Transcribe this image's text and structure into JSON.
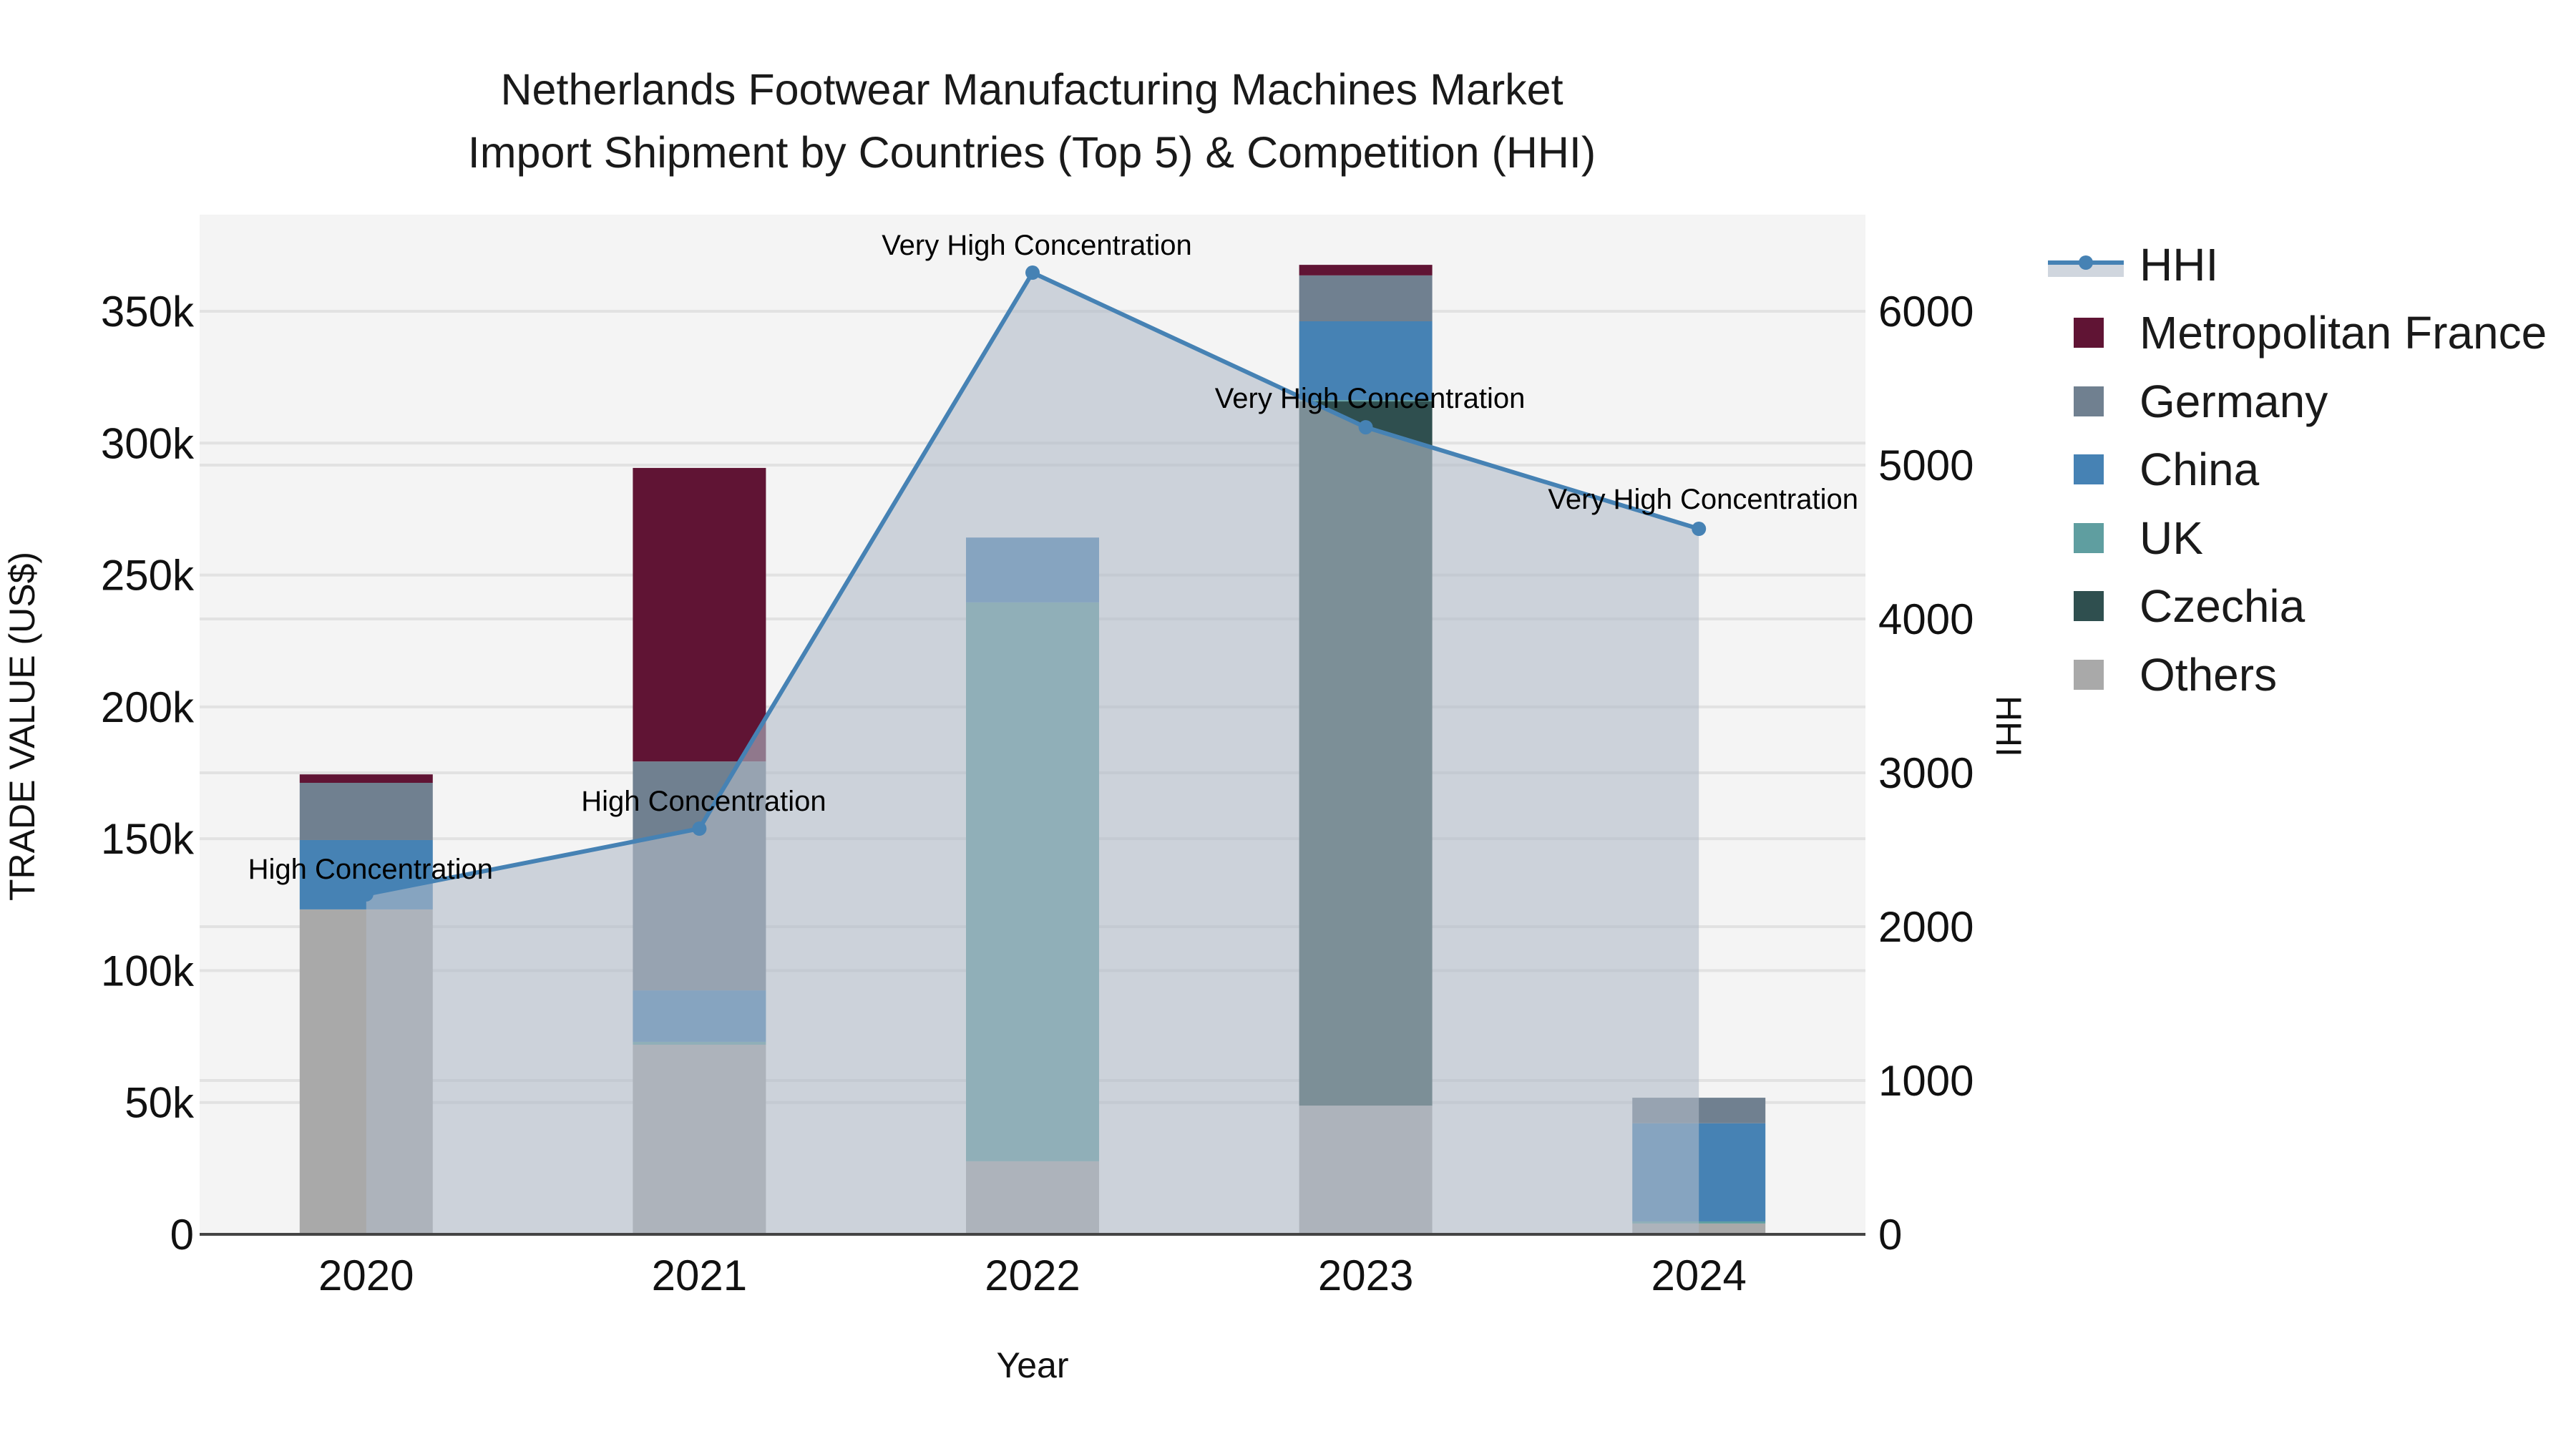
{
  "title": {
    "line1": "Netherlands Footwear Manufacturing Machines Market",
    "line2": "Import Shipment by Countries (Top 5) & Competition (HHI)"
  },
  "axes": {
    "x_title": "Year",
    "y_left_title": "TRADE VALUE (US$)",
    "y_right_title": "HHI",
    "y_left_ticks": [
      "0",
      "50k",
      "100k",
      "150k",
      "200k",
      "250k",
      "300k",
      "350k"
    ],
    "y_right_ticks": [
      "0",
      "1000",
      "2000",
      "3000",
      "4000",
      "5000",
      "6000"
    ]
  },
  "legend": {
    "items": [
      {
        "label": "HHI",
        "kind": "line",
        "color": "#4682b4"
      },
      {
        "label": "Metropolitan France",
        "kind": "bar",
        "color": "#601434"
      },
      {
        "label": "Germany",
        "kind": "bar",
        "color": "#708090"
      },
      {
        "label": "China",
        "kind": "bar",
        "color": "#4682b4"
      },
      {
        "label": "UK",
        "kind": "bar",
        "color": "#5f9ea0"
      },
      {
        "label": "Czechia",
        "kind": "bar",
        "color": "#2f4f4f"
      },
      {
        "label": "Others",
        "kind": "bar",
        "color": "#a9a9a9"
      }
    ]
  },
  "colors": {
    "plot_bg": "#f4f4f4",
    "grid": "#e2e2e2",
    "hhi_line": "#4682b4",
    "hhi_fill": "rgba(176,186,200,0.6)"
  },
  "annotations": [
    {
      "year": "2020",
      "text": "High Concentration"
    },
    {
      "year": "2021",
      "text": "High Concentration"
    },
    {
      "year": "2022",
      "text": "Very High Concentration"
    },
    {
      "year": "2023",
      "text": "Very High Concentration"
    },
    {
      "year": "2024",
      "text": "Very High Concentration"
    }
  ],
  "chart_data": {
    "type": "bar",
    "stacked": true,
    "title": "Netherlands Footwear Manufacturing Machines Market Import Shipment by Countries (Top 5) & Competition (HHI)",
    "xlabel": "Year",
    "ylabel": "TRADE VALUE (US$)",
    "y2label": "HHI",
    "categories": [
      "2020",
      "2021",
      "2022",
      "2023",
      "2024"
    ],
    "ylim": [
      0,
      385000
    ],
    "y2lim": [
      0,
      6600
    ],
    "grid": true,
    "legend_position": "right",
    "series": [
      {
        "name": "Others",
        "color": "#a9a9a9",
        "values": [
          123200,
          71900,
          27700,
          48800,
          4100
        ]
      },
      {
        "name": "Czechia",
        "color": "#2f4f4f",
        "values": [
          0,
          0,
          0,
          267000,
          0
        ]
      },
      {
        "name": "UK",
        "color": "#5f9ea0",
        "values": [
          0,
          1100,
          211900,
          500,
          800
        ]
      },
      {
        "name": "China",
        "color": "#4682b4",
        "values": [
          26300,
          19500,
          24600,
          29900,
          37200
        ]
      },
      {
        "name": "Germany",
        "color": "#708090",
        "values": [
          21700,
          86800,
          0,
          17400,
          9700
        ]
      },
      {
        "name": "Metropolitan France",
        "color": "#601434",
        "values": [
          3200,
          111300,
          0,
          4000,
          0
        ]
      }
    ],
    "line_series": {
      "name": "HHI",
      "axis": "right",
      "type": "line+area",
      "color": "#4682b4",
      "values": [
        2210,
        2637,
        6251,
        5246,
        4586
      ],
      "labels": [
        "High Concentration",
        "High Concentration",
        "Very High Concentration",
        "Very High Concentration",
        "Very High Concentration"
      ]
    }
  }
}
